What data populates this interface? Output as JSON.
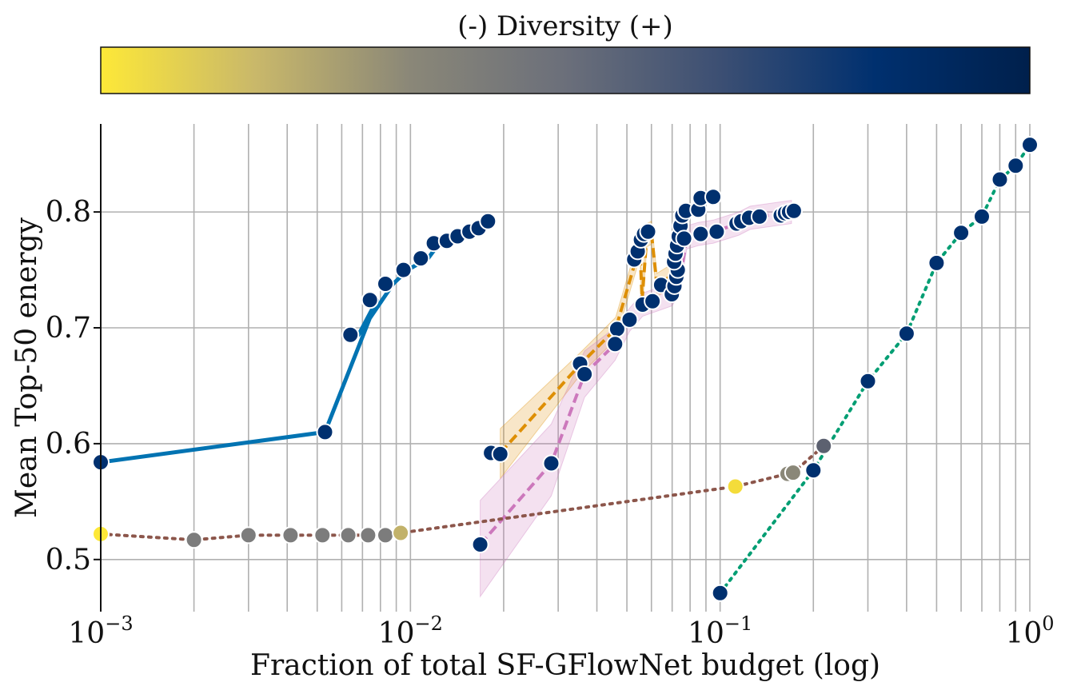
{
  "colorbar": {
    "title": "(-) Diversity (+)",
    "colors": [
      "#fde838",
      "#c9b86a",
      "#8a8778",
      "#6b6f7a",
      "#3c4f73",
      "#00306f",
      "#00204c"
    ]
  },
  "chart_data": {
    "type": "line",
    "xlabel": "Fraction of total SF-GFlowNet budget (log)",
    "ylabel": "Mean Top-50 energy",
    "xscale": "log",
    "xlim": [
      0.001,
      1
    ],
    "ylim": [
      0.455,
      0.876
    ],
    "grid": true,
    "x_tick_labels": [
      {
        "base": "10",
        "exp": "−3",
        "value": 0.001
      },
      {
        "base": "10",
        "exp": "−2",
        "value": 0.01
      },
      {
        "base": "10",
        "exp": "−1",
        "value": 0.1
      },
      {
        "base": "10",
        "exp": "0",
        "value": 1
      }
    ],
    "y_ticks": [
      {
        "label": "0.5",
        "value": 0.5
      },
      {
        "label": "0.6",
        "value": 0.6
      },
      {
        "label": "0.7",
        "value": 0.7
      },
      {
        "label": "0.8",
        "value": 0.8
      }
    ],
    "series": [
      {
        "color": "#0173b2",
        "style": "solid",
        "width": 5,
        "x": [
          0.001,
          0.0053,
          0.0078,
          0.0068,
          0.0088,
          0.0098,
          0.0114,
          0.0124,
          0.0138,
          0.0149,
          0.0162,
          0.0175
        ],
        "y": [
          0.584,
          0.61,
          0.724,
          0.694,
          0.738,
          0.75,
          0.76,
          0.773,
          0.775,
          0.779,
          0.783,
          0.788
        ],
        "points": [
          {
            "x": 0.001,
            "y": 0.584,
            "c": "#00306f"
          },
          {
            "x": 0.0053,
            "y": 0.61,
            "c": "#00306f"
          },
          {
            "x": 0.0064,
            "y": 0.694,
            "c": "#00306f"
          },
          {
            "x": 0.0074,
            "y": 0.724,
            "c": "#00306f"
          },
          {
            "x": 0.0083,
            "y": 0.738,
            "c": "#00306f"
          },
          {
            "x": 0.0095,
            "y": 0.75,
            "c": "#00306f"
          },
          {
            "x": 0.0108,
            "y": 0.76,
            "c": "#00306f"
          },
          {
            "x": 0.0119,
            "y": 0.773,
            "c": "#00306f"
          },
          {
            "x": 0.0131,
            "y": 0.775,
            "c": "#00306f"
          },
          {
            "x": 0.0142,
            "y": 0.779,
            "c": "#00306f"
          },
          {
            "x": 0.0155,
            "y": 0.783,
            "c": "#00306f"
          },
          {
            "x": 0.0166,
            "y": 0.786,
            "c": "#00306f"
          },
          {
            "x": 0.0178,
            "y": 0.792,
            "c": "#00306f"
          }
        ]
      },
      {
        "color": "#de8f05",
        "style": "dashed",
        "width": 4,
        "band_color": "#de8f05",
        "x": [
          0.0195,
          0.0355,
          0.046,
          0.0535,
          0.055,
          0.056,
          0.058,
          0.06,
          0.0625,
          0.067,
          0.072
        ],
        "y": [
          0.592,
          0.669,
          0.699,
          0.759,
          0.774,
          0.724,
          0.78,
          0.782,
          0.737,
          0.742,
          0.748
        ],
        "lo": [
          0.57,
          0.66,
          0.69,
          0.749,
          0.764,
          0.714,
          0.77,
          0.772,
          0.727,
          0.732,
          0.738
        ],
        "hi": [
          0.613,
          0.679,
          0.709,
          0.769,
          0.784,
          0.734,
          0.79,
          0.792,
          0.747,
          0.752,
          0.758
        ],
        "points": [
          {
            "x": 0.0182,
            "y": 0.592,
            "c": "#00306f"
          },
          {
            "x": 0.0195,
            "y": 0.591,
            "c": "#00306f"
          },
          {
            "x": 0.0353,
            "y": 0.669,
            "c": "#00306f"
          },
          {
            "x": 0.0465,
            "y": 0.699,
            "c": "#00306f"
          },
          {
            "x": 0.0528,
            "y": 0.759,
            "c": "#00306f"
          },
          {
            "x": 0.0542,
            "y": 0.766,
            "c": "#00306f"
          },
          {
            "x": 0.0555,
            "y": 0.776,
            "c": "#00306f"
          },
          {
            "x": 0.0568,
            "y": 0.781,
            "c": "#00306f"
          },
          {
            "x": 0.0585,
            "y": 0.783,
            "c": "#00306f"
          },
          {
            "x": 0.0645,
            "y": 0.737,
            "c": "#00306f"
          }
        ]
      },
      {
        "color": "#cc78bc",
        "style": "dashed",
        "width": 4,
        "band_color": "#cc78bc",
        "x": [
          0.0168,
          0.0285,
          0.0365,
          0.0458,
          0.051,
          0.0562,
          0.0605,
          0.07,
          0.0725,
          0.075,
          0.078,
          0.085,
          0.095,
          0.115,
          0.125,
          0.17
        ],
        "y": [
          0.513,
          0.583,
          0.66,
          0.686,
          0.707,
          0.72,
          0.723,
          0.729,
          0.736,
          0.75,
          0.778,
          0.781,
          0.783,
          0.79,
          0.795,
          0.8
        ],
        "lo": [
          0.468,
          0.555,
          0.64,
          0.672,
          0.697,
          0.71,
          0.713,
          0.719,
          0.726,
          0.74,
          0.768,
          0.771,
          0.773,
          0.78,
          0.785,
          0.79
        ],
        "hi": [
          0.551,
          0.617,
          0.68,
          0.7,
          0.717,
          0.73,
          0.733,
          0.739,
          0.746,
          0.76,
          0.788,
          0.791,
          0.793,
          0.8,
          0.805,
          0.81
        ],
        "points": [
          {
            "x": 0.0168,
            "y": 0.513,
            "c": "#00306f"
          },
          {
            "x": 0.0285,
            "y": 0.583,
            "c": "#00306f"
          },
          {
            "x": 0.0365,
            "y": 0.66,
            "c": "#00306f"
          },
          {
            "x": 0.0458,
            "y": 0.686,
            "c": "#00306f"
          },
          {
            "x": 0.051,
            "y": 0.707,
            "c": "#00306f"
          },
          {
            "x": 0.0562,
            "y": 0.72,
            "c": "#00306f"
          },
          {
            "x": 0.0605,
            "y": 0.723,
            "c": "#00306f"
          },
          {
            "x": 0.0698,
            "y": 0.729,
            "c": "#00306f"
          },
          {
            "x": 0.0712,
            "y": 0.736,
            "c": "#00306f"
          },
          {
            "x": 0.0722,
            "y": 0.744,
            "c": "#00306f"
          },
          {
            "x": 0.073,
            "y": 0.75,
            "c": "#00306f"
          },
          {
            "x": 0.071,
            "y": 0.757,
            "c": "#00306f"
          },
          {
            "x": 0.0718,
            "y": 0.764,
            "c": "#00306f"
          },
          {
            "x": 0.0726,
            "y": 0.771,
            "c": "#00306f"
          },
          {
            "x": 0.0735,
            "y": 0.779,
            "c": "#00306f"
          },
          {
            "x": 0.0745,
            "y": 0.788,
            "c": "#00306f"
          },
          {
            "x": 0.0755,
            "y": 0.797,
            "c": "#00306f"
          },
          {
            "x": 0.0775,
            "y": 0.801,
            "c": "#00306f"
          },
          {
            "x": 0.0765,
            "y": 0.777,
            "c": "#00306f"
          },
          {
            "x": 0.085,
            "y": 0.802,
            "c": "#00306f"
          },
          {
            "x": 0.0865,
            "y": 0.781,
            "c": "#00306f"
          },
          {
            "x": 0.0865,
            "y": 0.812,
            "c": "#00306f"
          },
          {
            "x": 0.095,
            "y": 0.813,
            "c": "#00306f"
          },
          {
            "x": 0.0975,
            "y": 0.783,
            "c": "#00306f"
          },
          {
            "x": 0.113,
            "y": 0.79,
            "c": "#00306f"
          },
          {
            "x": 0.117,
            "y": 0.792,
            "c": "#00306f"
          },
          {
            "x": 0.124,
            "y": 0.795,
            "c": "#00306f"
          },
          {
            "x": 0.134,
            "y": 0.796,
            "c": "#00306f"
          },
          {
            "x": 0.157,
            "y": 0.797,
            "c": "#00306f"
          },
          {
            "x": 0.162,
            "y": 0.799,
            "c": "#00306f"
          },
          {
            "x": 0.167,
            "y": 0.8,
            "c": "#00306f"
          },
          {
            "x": 0.173,
            "y": 0.801,
            "c": "#00306f"
          }
        ]
      },
      {
        "color": "#8c564b",
        "style": "dotted",
        "width": 4,
        "x": [
          0.001,
          0.002,
          0.003,
          0.0041,
          0.0052,
          0.0063,
          0.0073,
          0.0083,
          0.0093,
          0.112,
          0.165,
          0.172,
          0.216
        ],
        "y": [
          0.522,
          0.517,
          0.521,
          0.521,
          0.521,
          0.521,
          0.521,
          0.521,
          0.523,
          0.563,
          0.574,
          0.575,
          0.598
        ],
        "points": [
          {
            "x": 0.001,
            "y": 0.522,
            "c": "#fde838"
          },
          {
            "x": 0.002,
            "y": 0.517,
            "c": "#7c7c7c"
          },
          {
            "x": 0.003,
            "y": 0.521,
            "c": "#7c7c7c"
          },
          {
            "x": 0.0041,
            "y": 0.521,
            "c": "#7c7c7c"
          },
          {
            "x": 0.0052,
            "y": 0.521,
            "c": "#7c7c7c"
          },
          {
            "x": 0.0063,
            "y": 0.521,
            "c": "#7c7c7c"
          },
          {
            "x": 0.0073,
            "y": 0.521,
            "c": "#7c7c7c"
          },
          {
            "x": 0.0083,
            "y": 0.521,
            "c": "#7c7c7c"
          },
          {
            "x": 0.0093,
            "y": 0.523,
            "c": "#c2b26a"
          },
          {
            "x": 0.112,
            "y": 0.563,
            "c": "#f4dc3a"
          },
          {
            "x": 0.165,
            "y": 0.574,
            "c": "#8a8778"
          },
          {
            "x": 0.172,
            "y": 0.575,
            "c": "#8a8778"
          },
          {
            "x": 0.216,
            "y": 0.598,
            "c": "#5c6170"
          }
        ]
      },
      {
        "color": "#029e73",
        "style": "dotted",
        "width": 4,
        "x": [
          0.1,
          0.2,
          0.3,
          0.4,
          0.5,
          0.6,
          0.7,
          0.8,
          0.9,
          1.0
        ],
        "y": [
          0.471,
          0.577,
          0.654,
          0.695,
          0.756,
          0.782,
          0.796,
          0.828,
          0.84,
          0.858
        ],
        "points": [
          {
            "x": 0.1,
            "y": 0.471,
            "c": "#00306f"
          },
          {
            "x": 0.2,
            "y": 0.577,
            "c": "#00306f"
          },
          {
            "x": 0.3,
            "y": 0.654,
            "c": "#00306f"
          },
          {
            "x": 0.4,
            "y": 0.695,
            "c": "#00306f"
          },
          {
            "x": 0.5,
            "y": 0.756,
            "c": "#00306f"
          },
          {
            "x": 0.6,
            "y": 0.782,
            "c": "#00306f"
          },
          {
            "x": 0.7,
            "y": 0.796,
            "c": "#00306f"
          },
          {
            "x": 0.8,
            "y": 0.828,
            "c": "#00306f"
          },
          {
            "x": 0.9,
            "y": 0.84,
            "c": "#00306f"
          },
          {
            "x": 1.0,
            "y": 0.858,
            "c": "#00306f"
          }
        ]
      }
    ]
  }
}
